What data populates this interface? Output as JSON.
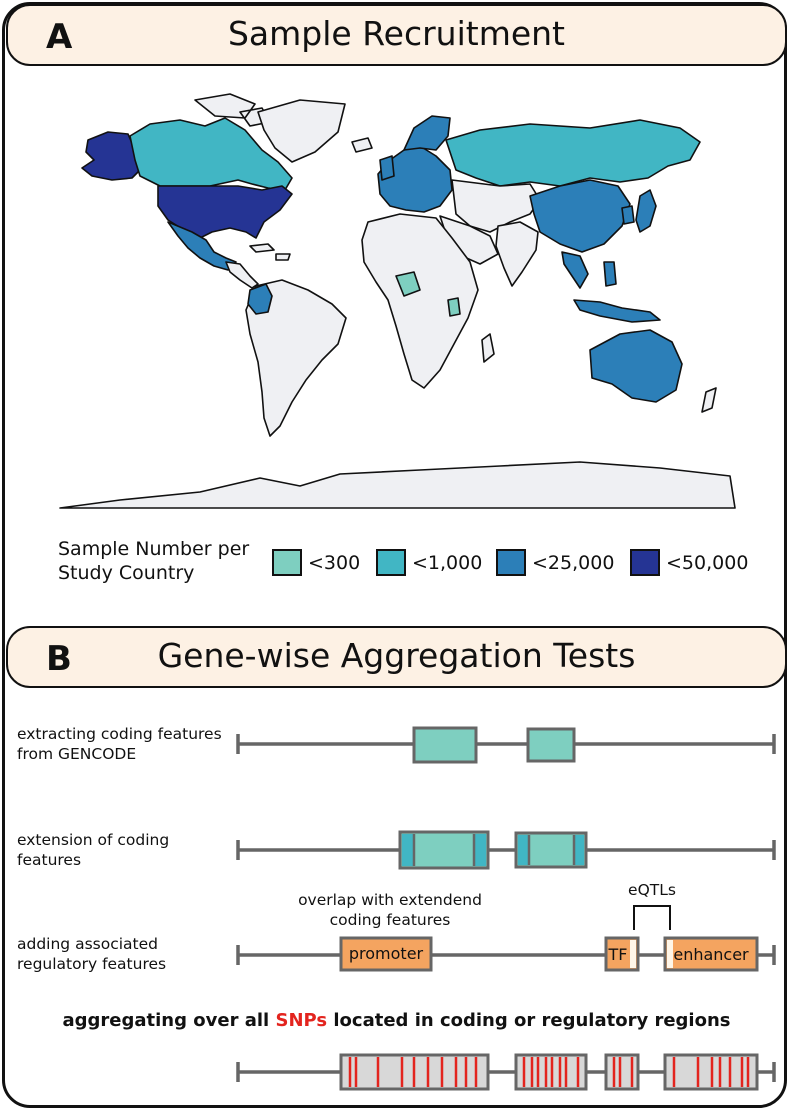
{
  "panel_a": {
    "letter": "A",
    "title": "Sample Recruitment",
    "legend": {
      "title_line1": "Sample Number per",
      "title_line2": "Study Country",
      "items": [
        {
          "label": "<300",
          "color": "#7ecfc0"
        },
        {
          "label": "<1,000",
          "color": "#41b6c4"
        },
        {
          "label": "<25,000",
          "color": "#2c7fb8"
        },
        {
          "label": "<50,000",
          "color": "#253494"
        }
      ]
    },
    "map": {
      "land_color": "#eff0f3",
      "border_color": "#111111"
    }
  },
  "panel_b": {
    "letter": "B",
    "title": "Gene-wise Aggregation Tests",
    "steps": [
      {
        "line1": "extracting coding features",
        "line2": "from GENCODE"
      },
      {
        "line1": "extension of coding",
        "line2": "features"
      },
      {
        "line1": "adding associated",
        "line2": "regulatory features"
      }
    ],
    "overlap_note_line1": "overlap with extendend",
    "overlap_note_line2": "coding features",
    "eqtl_label": "eQTLs",
    "promoter_label": "promoter",
    "tf_label": "TF",
    "enhancer_label": "enhancer",
    "summary_before": "aggregating over all ",
    "summary_snps": "SNPs",
    "summary_after": " located in coding or regulatory regions",
    "colors": {
      "coding": "#7ecfc0",
      "extension": "#41b6c4",
      "regulatory": "#f4a460",
      "snp": "#e3241e",
      "track": "#666666"
    }
  }
}
